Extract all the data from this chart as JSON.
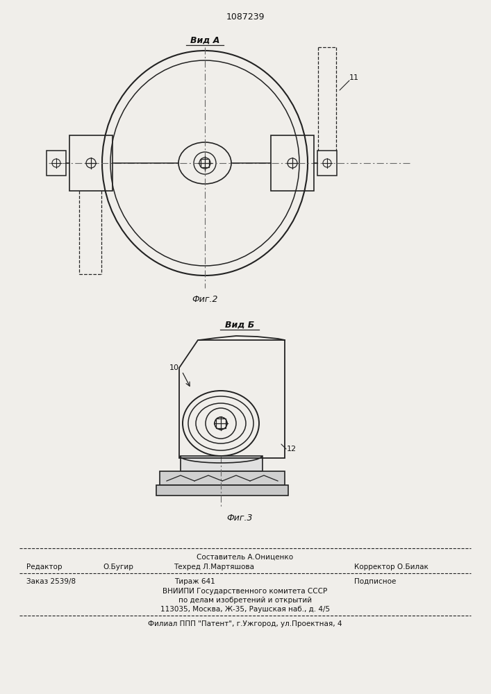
{
  "patent_number": "1087239",
  "fig2_label": "Вид А",
  "fig2_caption": "Фиг.2",
  "fig3_label": "Вид Б",
  "fig3_caption": "Фиг.3",
  "label_11": "11",
  "label_10": "10",
  "label_12": "12",
  "footer_line1": "Составитель А.Ониценко",
  "footer_line2_left": "Редактор",
  "footer_line2_mid1": "О.Бугир",
  "footer_line2_mid2": "Техред Л.Мартяшова",
  "footer_line2_right": "Корректор О.Билак",
  "footer_line3_left": "Заказ 2539/8",
  "footer_line3_mid": "Тираж 641",
  "footer_line3_right": "Подписное",
  "footer_line4": "ВНИИПИ Государственного комитета СССР",
  "footer_line5": "по делам изобретений и открытий",
  "footer_line6": "113035, Москва, Ж-35, Раушская наб., д. 4/5",
  "footer_line7": "Филиал ППП \"Патент\", г.Ужгород, ул.Проектная, 4",
  "bg_color": "#f0eeea",
  "line_color": "#222222",
  "text_color": "#111111"
}
